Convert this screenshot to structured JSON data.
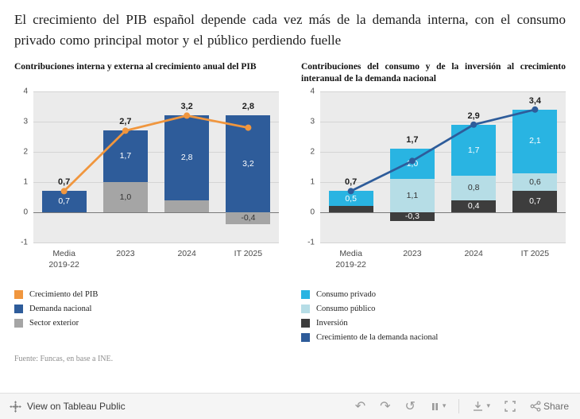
{
  "title": "El crecimiento del PIB español depende cada vez más de la demanda interna, con el consumo privado como principal motor y el público perdiendo fuelle",
  "source": "Fuente: Funcas, en base a INE.",
  "toolbar": {
    "view_label": "View on Tableau Public",
    "share_label": "Share",
    "icons": {
      "undo": "↶",
      "redo": "↷",
      "reset": "↺",
      "chevron": "▾"
    }
  },
  "chart_data": [
    {
      "type": "bar",
      "title": "Contribuciones interna y externa al crecimiento anual del PIB",
      "categories": [
        "Media\n2019-22",
        "2023",
        "2024",
        "IT 2025"
      ],
      "ylim": [
        -1,
        4
      ],
      "yticks": [
        4,
        3,
        2,
        1,
        0,
        -1
      ],
      "grid": true,
      "legend_position": "bottom",
      "bar_series": [
        {
          "name": "Sector exterior",
          "color": "#a5a5a5",
          "label_color": "#333333",
          "values": [
            0,
            1.0,
            0.4,
            -0.4
          ],
          "labels": [
            "",
            "1,0",
            "",
            "-0,4"
          ]
        },
        {
          "name": "Demanda nacional",
          "color": "#2e5c9a",
          "label_color": "#ffffff",
          "values": [
            0.7,
            1.7,
            2.8,
            3.2
          ],
          "labels": [
            "0,7",
            "1,7",
            "2,8",
            "3,2"
          ]
        }
      ],
      "line_series": {
        "name": "Crecimiento del PIB",
        "color": "#f0963e",
        "values": [
          0.7,
          2.7,
          3.2,
          2.8
        ],
        "labels": [
          "0,7",
          "2,7",
          "3,2",
          "2,8"
        ]
      },
      "legend": [
        {
          "label": "Crecimiento del PIB",
          "color": "#f0963e"
        },
        {
          "label": "Demanda nacional",
          "color": "#2e5c9a"
        },
        {
          "label": "Sector exterior",
          "color": "#a5a5a5"
        }
      ]
    },
    {
      "type": "bar",
      "title": "Contribuciones del consumo y de la inversión al crecimiento interanual de la demanda nacional",
      "categories": [
        "Media\n2019-22",
        "2023",
        "2024",
        "IT 2025"
      ],
      "ylim": [
        -1,
        4
      ],
      "yticks": [
        4,
        3,
        2,
        1,
        0,
        -1
      ],
      "grid": true,
      "legend_position": "bottom",
      "bar_series": [
        {
          "name": "Inversión",
          "color": "#3d3d3d",
          "label_color": "#ffffff",
          "values": [
            0.2,
            -0.3,
            0.4,
            0.7
          ],
          "labels": [
            "",
            "-0,3",
            "0,4",
            "0,7"
          ]
        },
        {
          "name": "Consumo público",
          "color": "#b6dde6",
          "label_color": "#333333",
          "values": [
            0,
            1.1,
            0.8,
            0.6
          ],
          "labels": [
            "",
            "1,1",
            "0,8",
            "0,6"
          ]
        },
        {
          "name": "Consumo privado",
          "color": "#29b4e2",
          "label_color": "#ffffff",
          "values": [
            0.5,
            1.0,
            1.7,
            2.1
          ],
          "labels": [
            "0,5",
            "1,0",
            "1,7",
            "2,1"
          ]
        }
      ],
      "line_series": {
        "name": "Crecimiento de la demanda nacional",
        "color": "#2e5c9a",
        "values": [
          0.7,
          1.7,
          2.9,
          3.4
        ],
        "labels": [
          "0,7",
          "1,7",
          "2,9",
          "3,4"
        ]
      },
      "legend": [
        {
          "label": "Consumo privado",
          "color": "#29b4e2"
        },
        {
          "label": "Consumo público",
          "color": "#b6dde6"
        },
        {
          "label": "Inversión",
          "color": "#3d3d3d"
        },
        {
          "label": "Crecimiento de la demanda nacional",
          "color": "#2e5c9a"
        }
      ]
    }
  ]
}
